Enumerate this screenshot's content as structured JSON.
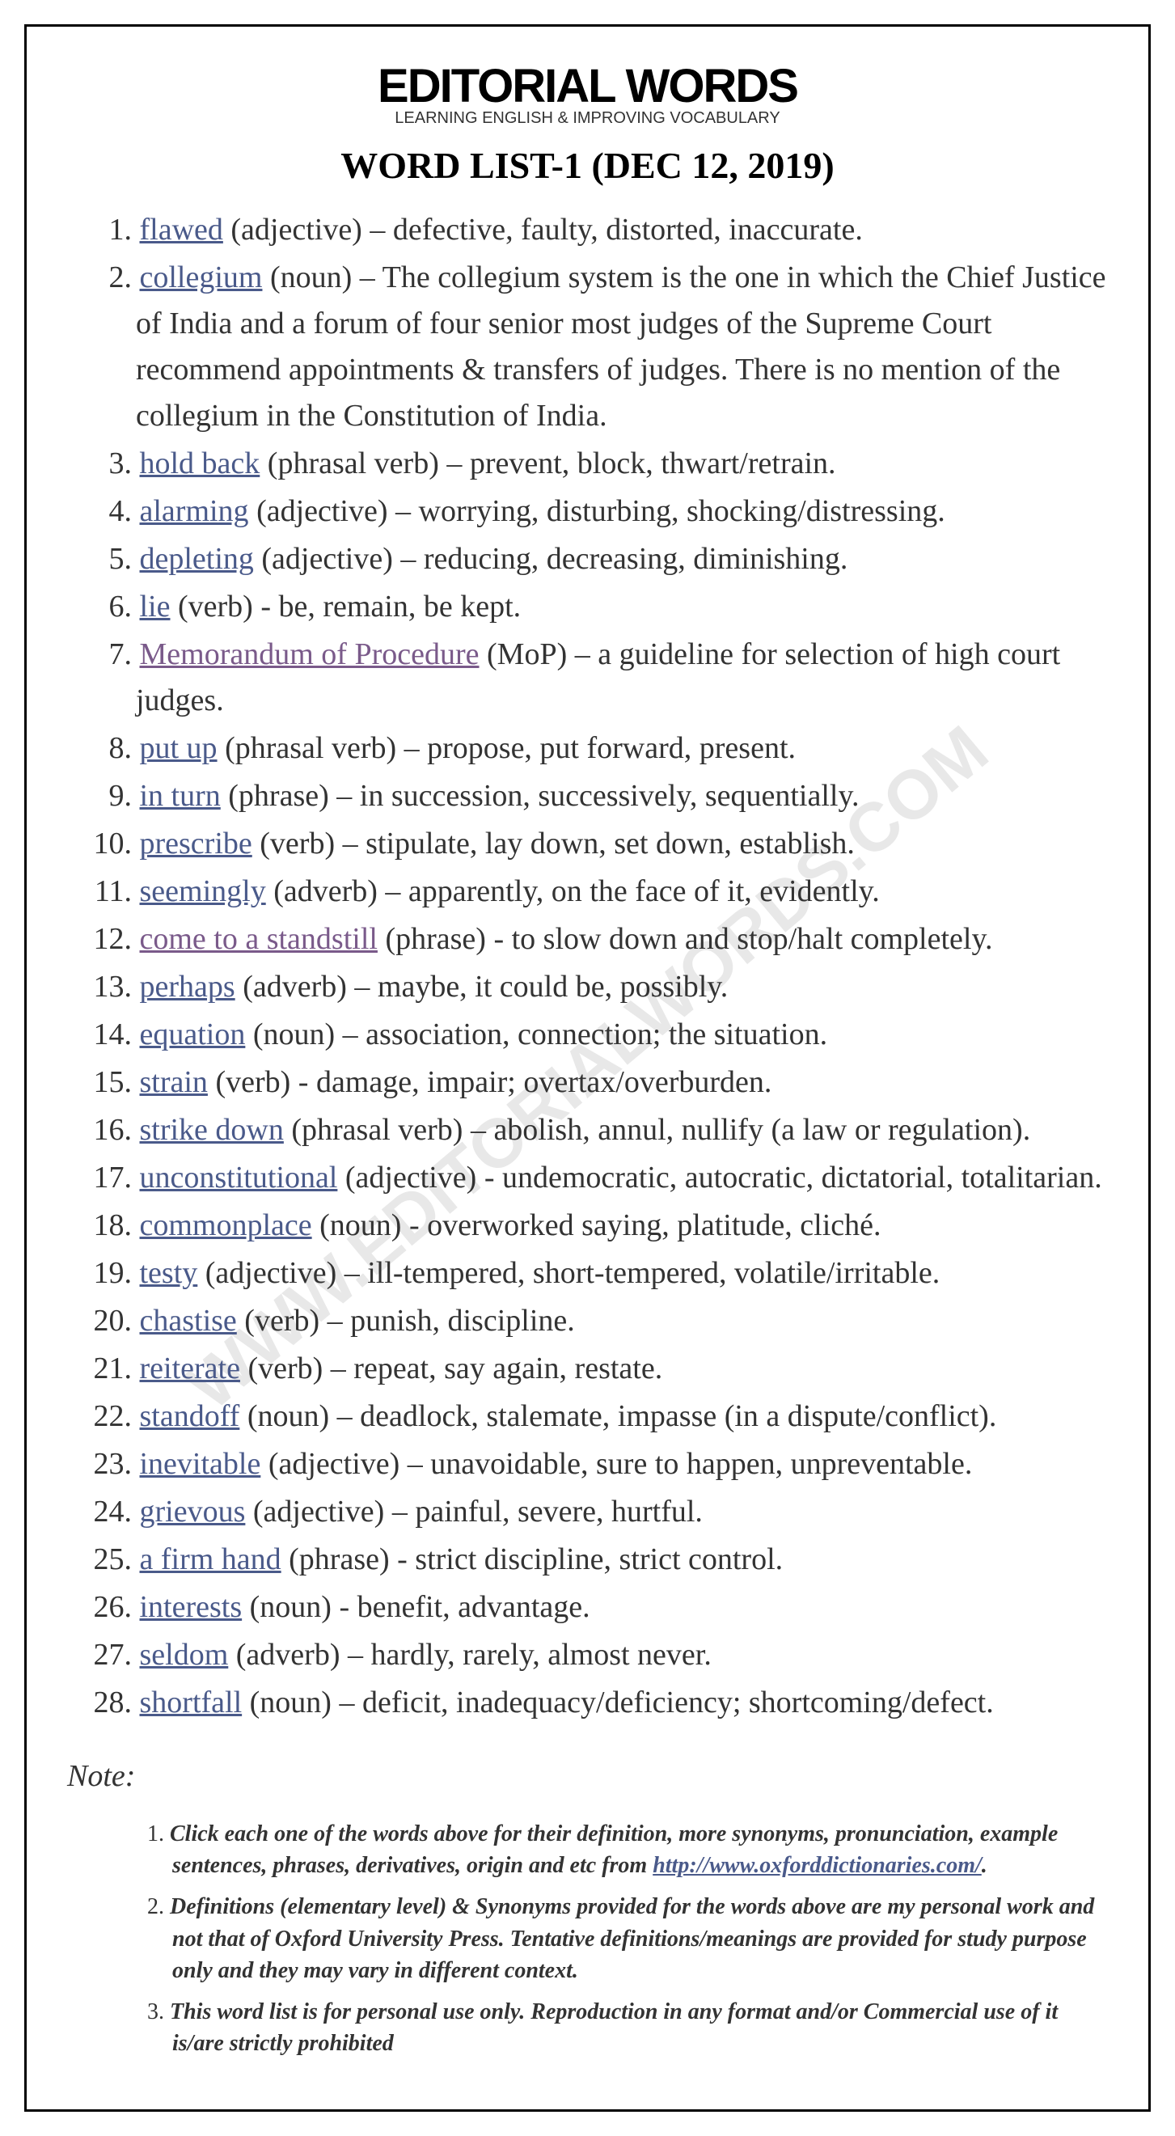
{
  "watermark_text": "WWW.EDITORIALWORDS.COM",
  "header": {
    "title": "EDITORIAL WORDS",
    "subtitle": "LEARNING ENGLISH & IMPROVING VOCABULARY",
    "list_title": "WORD LIST-1 (DEC 12, 2019)"
  },
  "words": [
    {
      "num": "1.",
      "word": "flawed",
      "pos": "(adjective)",
      "sep": " – ",
      "def": "defective, faulty, distorted, inaccurate."
    },
    {
      "num": "2.",
      "word": "collegium",
      "pos": "(noun)",
      "sep": " – ",
      "def": "The collegium system is the one in which the Chief Justice of India and a forum of four senior most judges of the Supreme Court recommend appointments & transfers of judges. There is no mention of the collegium in the Constitution of India."
    },
    {
      "num": "3.",
      "word": "hold back",
      "pos": "(phrasal verb)",
      "sep": " – ",
      "def": "prevent, block, thwart/retrain."
    },
    {
      "num": "4.",
      "word": "alarming",
      "pos": "(adjective)",
      "sep": " – ",
      "def": "worrying, disturbing, shocking/distressing."
    },
    {
      "num": "5.",
      "word": "depleting",
      "pos": "(adjective)",
      "sep": " – ",
      "def": "reducing, decreasing, diminishing."
    },
    {
      "num": "6.",
      "word": "lie",
      "pos": "(verb)",
      "sep": " - ",
      "def": "be, remain, be kept."
    },
    {
      "num": "7.",
      "word": "Memorandum of Procedure",
      "visited": true,
      "pos": "(MoP)",
      "sep": " – ",
      "def": "a guideline for selection of high court judges."
    },
    {
      "num": "8.",
      "word": "put up",
      "pos": "(phrasal verb)",
      "sep": " – ",
      "def": "propose, put forward, present."
    },
    {
      "num": "9.",
      "word": "in turn",
      "pos": "(phrase)",
      "sep": " – ",
      "def": "in succession, successively, sequentially."
    },
    {
      "num": "10.",
      "word": "prescribe",
      "pos": "(verb)",
      "sep": " – ",
      "def": "stipulate, lay down, set down, establish."
    },
    {
      "num": "11.",
      "word": "seemingly",
      "pos": "(adverb)",
      "sep": " – ",
      "def": "apparently, on the face of it, evidently."
    },
    {
      "num": "12.",
      "word": "come to a standstill",
      "visited": true,
      "pos": "(phrase)",
      "sep": " - ",
      "def": "to slow down and stop/halt completely."
    },
    {
      "num": "13.",
      "word": "perhaps",
      "pos": "(adverb)",
      "sep": " – ",
      "def": "maybe, it could be, possibly."
    },
    {
      "num": "14.",
      "word": "equation",
      "pos": "(noun)",
      "sep": " – ",
      "def": "association, connection; the situation."
    },
    {
      "num": "15.",
      "word": "strain",
      "pos": "(verb)",
      "sep": " - ",
      "def": "damage, impair; overtax/overburden."
    },
    {
      "num": "16.",
      "word": "strike down",
      "pos": "(phrasal verb)",
      "sep": " – ",
      "def": "abolish, annul, nullify (a law or regulation)."
    },
    {
      "num": "17.",
      "word": "unconstitutional",
      "pos": "(adjective)",
      "sep": " - ",
      "def": "undemocratic, autocratic, dictatorial, totalitarian."
    },
    {
      "num": "18.",
      "word": "commonplace",
      "pos": "(noun)",
      "sep": " - ",
      "def": "overworked saying, platitude, cliché."
    },
    {
      "num": "19.",
      "word": "testy",
      "pos": "(adjective)",
      "sep": " – ",
      "def": "ill-tempered, short-tempered, volatile/irritable."
    },
    {
      "num": "20.",
      "word": "chastise",
      "pos": "(verb)",
      "sep": " – ",
      "def": "punish, discipline."
    },
    {
      "num": "21.",
      "word": "reiterate",
      "pos": "(verb)",
      "sep": " – ",
      "def": "repeat, say again, restate."
    },
    {
      "num": "22.",
      "word": "standoff",
      "pos": "(noun)",
      "sep": " – ",
      "def": "deadlock, stalemate, impasse (in a dispute/conflict)."
    },
    {
      "num": "23.",
      "word": "inevitable",
      "pos": "(adjective)",
      "sep": " – ",
      "def": "unavoidable, sure to happen, unpreventable."
    },
    {
      "num": "24.",
      "word": "grievous",
      "pos": "(adjective)",
      "sep": " – ",
      "def": "painful, severe, hurtful."
    },
    {
      "num": "25.",
      "word": "a firm hand",
      "pos": "(phrase)",
      "sep": " - ",
      "def": "strict discipline, strict control."
    },
    {
      "num": "26.",
      "word": "interests",
      "pos": "(noun)",
      "sep": " - ",
      "def": "benefit, advantage."
    },
    {
      "num": "27.",
      "word": "seldom",
      "pos": "(adverb)",
      "sep": " – ",
      "def": "hardly, rarely, almost never."
    },
    {
      "num": "28.",
      "word": "shortfall",
      "pos": "(noun)",
      "sep": " – ",
      "def": "deficit, inadequacy/deficiency; shortcoming/defect."
    }
  ],
  "note_heading": "Note:",
  "notes": [
    {
      "num": "1.",
      "text_before": "Click each one of the words above for their definition, more synonyms, pronunciation, example sentences, phrases, derivatives, origin and etc from ",
      "link": "http://www.oxforddictionaries.com/",
      "text_after": "."
    },
    {
      "num": "2.",
      "text_before": "Definitions (elementary level) & Synonyms provided for the words above are my personal work and not that of Oxford University Press. Tentative definitions/meanings are provided for study purpose only and they may vary in different context.",
      "link": "",
      "text_after": ""
    },
    {
      "num": "3.",
      "text_before": "This word list is for personal use only. Reproduction in any format and/or Commercial use of it is/are strictly prohibited",
      "link": "",
      "text_after": ""
    }
  ]
}
